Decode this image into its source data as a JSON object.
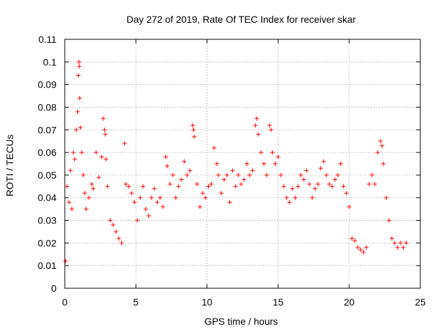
{
  "chart_data": {
    "type": "scatter",
    "title": "Day 272 of 2019, Rate Of TEC Index for receiver skar",
    "xlabel": "GPS time / hours",
    "ylabel": "ROTI / TECUs",
    "xlim": [
      0,
      25
    ],
    "ylim": [
      0,
      0.11
    ],
    "x_ticks": [
      "0",
      "5",
      "10",
      "15",
      "20",
      "25"
    ],
    "y_ticks": [
      "0",
      "0.01",
      "0.02",
      "0.03",
      "0.04",
      "0.05",
      "0.06",
      "0.07",
      "0.08",
      "0.09",
      "0.1",
      "0.11"
    ],
    "x_tick_values": [
      0,
      5,
      10,
      15,
      20,
      25
    ],
    "y_tick_values": [
      0,
      0.01,
      0.02,
      0.03,
      0.04,
      0.05,
      0.06,
      0.07,
      0.08,
      0.09,
      0.1,
      0.11
    ],
    "grid": true,
    "marker": "+",
    "series_color": "#ff0000",
    "series": [
      {
        "x": [
          0.05,
          0.15,
          0.3,
          0.4,
          0.5,
          0.6,
          0.7,
          0.8,
          0.9,
          0.95,
          1.0,
          1.02,
          1.05,
          1.1,
          1.2,
          1.3,
          1.4,
          1.5,
          1.7,
          1.9,
          2.0,
          2.2,
          2.4,
          2.6,
          2.7,
          2.8,
          2.85,
          2.9,
          3.0,
          3.2,
          3.4,
          3.6,
          3.8,
          4.0,
          4.2,
          4.3,
          4.5,
          4.7,
          4.9,
          5.1,
          5.3,
          5.5,
          5.7,
          5.9,
          6.1,
          6.3,
          6.5,
          6.7,
          6.9,
          7.1,
          7.2,
          7.4,
          7.6,
          7.8,
          8.0,
          8.2,
          8.4,
          8.6,
          8.8,
          9.0,
          9.05,
          9.1,
          9.3,
          9.5,
          9.7,
          9.9,
          10.1,
          10.3,
          10.5,
          10.7,
          10.8,
          11.0,
          11.2,
          11.4,
          11.6,
          11.8,
          12.0,
          12.2,
          12.4,
          12.6,
          12.8,
          13.0,
          13.2,
          13.4,
          13.5,
          13.6,
          13.8,
          14.0,
          14.2,
          14.4,
          14.5,
          14.6,
          14.8,
          15.0,
          15.2,
          15.4,
          15.6,
          15.8,
          16.0,
          16.2,
          16.4,
          16.6,
          16.8,
          17.0,
          17.2,
          17.4,
          17.6,
          17.8,
          18.0,
          18.2,
          18.4,
          18.6,
          18.8,
          19.0,
          19.2,
          19.4,
          19.6,
          19.8,
          20.0,
          20.2,
          20.4,
          20.6,
          20.8,
          21.0,
          21.2,
          21.4,
          21.6,
          21.8,
          22.0,
          22.2,
          22.3,
          22.4,
          22.6,
          22.8,
          23.0,
          23.2,
          23.4,
          23.6,
          23.8,
          24.0
        ],
        "y": [
          0.012,
          0.045,
          0.038,
          0.052,
          0.035,
          0.06,
          0.057,
          0.07,
          0.078,
          0.094,
          0.1,
          0.098,
          0.084,
          0.071,
          0.06,
          0.05,
          0.042,
          0.035,
          0.04,
          0.046,
          0.044,
          0.06,
          0.049,
          0.058,
          0.075,
          0.07,
          0.068,
          0.057,
          0.045,
          0.03,
          0.028,
          0.025,
          0.022,
          0.02,
          0.064,
          0.046,
          0.045,
          0.042,
          0.038,
          0.03,
          0.04,
          0.045,
          0.035,
          0.032,
          0.04,
          0.044,
          0.038,
          0.04,
          0.036,
          0.058,
          0.054,
          0.046,
          0.05,
          0.04,
          0.045,
          0.048,
          0.056,
          0.05,
          0.052,
          0.072,
          0.07,
          0.067,
          0.046,
          0.036,
          0.042,
          0.04,
          0.045,
          0.046,
          0.062,
          0.055,
          0.05,
          0.042,
          0.048,
          0.05,
          0.038,
          0.052,
          0.045,
          0.05,
          0.046,
          0.048,
          0.055,
          0.05,
          0.052,
          0.072,
          0.075,
          0.068,
          0.06,
          0.055,
          0.05,
          0.072,
          0.07,
          0.06,
          0.055,
          0.058,
          0.05,
          0.045,
          0.04,
          0.038,
          0.044,
          0.04,
          0.045,
          0.05,
          0.048,
          0.052,
          0.046,
          0.04,
          0.044,
          0.046,
          0.053,
          0.056,
          0.05,
          0.046,
          0.045,
          0.048,
          0.05,
          0.055,
          0.045,
          0.042,
          0.036,
          0.022,
          0.021,
          0.018,
          0.017,
          0.016,
          0.018,
          0.046,
          0.05,
          0.046,
          0.06,
          0.065,
          0.063,
          0.055,
          0.04,
          0.03,
          0.022,
          0.02,
          0.018,
          0.02,
          0.018,
          0.02
        ]
      }
    ]
  }
}
